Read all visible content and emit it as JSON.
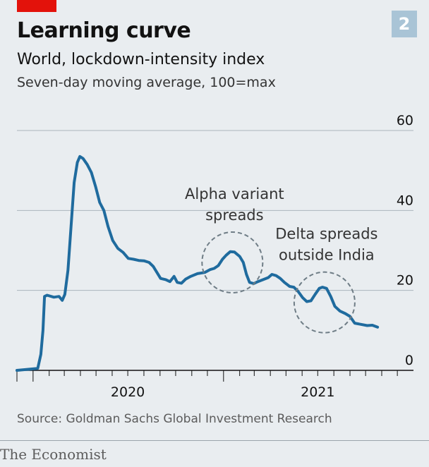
{
  "badge": "2",
  "title": "Learning curve",
  "subtitle": "World, lockdown-intensity index",
  "subtitle2": "Seven-day moving average, 100=max",
  "source": "Source: Goldman Sachs Global Investment Research",
  "brand": "The Economist",
  "colors": {
    "line": "#1f6b9e",
    "grid": "#aab5bd",
    "accent": "#e3120b",
    "badge": "#a9c4d6",
    "annotation_circle": "#6f7d86"
  },
  "chart_data": {
    "type": "line",
    "title": "Learning curve",
    "subtitle": "World, lockdown-intensity index",
    "ylabel": "Seven-day moving average, 100=max",
    "ylim": [
      0,
      60
    ],
    "yticks": [
      0,
      20,
      40,
      60
    ],
    "xlim": [
      "2019-12-01",
      "2022-01-01"
    ],
    "xticks": [
      "2020",
      "2021"
    ],
    "grid": true,
    "series": [
      {
        "values": [
          [
            "2019-12-01",
            0
          ],
          [
            "2020-01-10",
            0.5
          ],
          [
            "2020-01-16",
            4
          ],
          [
            "2020-01-20",
            10
          ],
          [
            "2020-01-23",
            18.5
          ],
          [
            "2020-01-28",
            18.8
          ],
          [
            "2020-02-10",
            18.3
          ],
          [
            "2020-02-20",
            18.5
          ],
          [
            "2020-02-26",
            17.5
          ],
          [
            "2020-03-02",
            19
          ],
          [
            "2020-03-08",
            25
          ],
          [
            "2020-03-14",
            36
          ],
          [
            "2020-03-20",
            47
          ],
          [
            "2020-03-26",
            52
          ],
          [
            "2020-03-31",
            53.5
          ],
          [
            "2020-04-06",
            53
          ],
          [
            "2020-04-14",
            51.5
          ],
          [
            "2020-04-22",
            49.5
          ],
          [
            "2020-04-30",
            46
          ],
          [
            "2020-05-08",
            42
          ],
          [
            "2020-05-16",
            40
          ],
          [
            "2020-05-24",
            36
          ],
          [
            "2020-06-02",
            32.5
          ],
          [
            "2020-06-12",
            30.5
          ],
          [
            "2020-06-22",
            29.5
          ],
          [
            "2020-07-02",
            28
          ],
          [
            "2020-07-12",
            27.8
          ],
          [
            "2020-07-22",
            27.5
          ],
          [
            "2020-08-01",
            27.4
          ],
          [
            "2020-08-11",
            27
          ],
          [
            "2020-08-19",
            26
          ],
          [
            "2020-08-26",
            24.5
          ],
          [
            "2020-09-02",
            23
          ],
          [
            "2020-09-12",
            22.7
          ],
          [
            "2020-09-20",
            22.2
          ],
          [
            "2020-09-28",
            23.5
          ],
          [
            "2020-10-04",
            22
          ],
          [
            "2020-10-12",
            21.8
          ],
          [
            "2020-10-20",
            22.8
          ],
          [
            "2020-10-30",
            23.5
          ],
          [
            "2020-11-12",
            24.2
          ],
          [
            "2020-11-26",
            24.5
          ],
          [
            "2020-12-06",
            25.2
          ],
          [
            "2020-12-14",
            25.5
          ],
          [
            "2020-12-22",
            26.2
          ],
          [
            "2020-12-30",
            27.8
          ],
          [
            "2021-01-06",
            28.8
          ],
          [
            "2021-01-14",
            29.7
          ],
          [
            "2021-01-22",
            29.6
          ],
          [
            "2021-02-01",
            28.5
          ],
          [
            "2021-02-08",
            27
          ],
          [
            "2021-02-14",
            24
          ],
          [
            "2021-02-20",
            22
          ],
          [
            "2021-02-28",
            21.7
          ],
          [
            "2021-03-08",
            22.2
          ],
          [
            "2021-03-18",
            22.7
          ],
          [
            "2021-03-28",
            23.2
          ],
          [
            "2021-04-04",
            24
          ],
          [
            "2021-04-12",
            23.7
          ],
          [
            "2021-04-20",
            23
          ],
          [
            "2021-04-28",
            22
          ],
          [
            "2021-05-08",
            21
          ],
          [
            "2021-05-16",
            20.8
          ],
          [
            "2021-05-24",
            19.8
          ],
          [
            "2021-06-02",
            18.2
          ],
          [
            "2021-06-10",
            17.2
          ],
          [
            "2021-06-18",
            17.4
          ],
          [
            "2021-06-26",
            19
          ],
          [
            "2021-07-04",
            20.5
          ],
          [
            "2021-07-10",
            20.8
          ],
          [
            "2021-07-18",
            20.5
          ],
          [
            "2021-07-26",
            18.5
          ],
          [
            "2021-08-03",
            16
          ],
          [
            "2021-08-13",
            14.8
          ],
          [
            "2021-08-23",
            14.2
          ],
          [
            "2021-09-01",
            13.5
          ],
          [
            "2021-09-10",
            11.8
          ],
          [
            "2021-09-22",
            11.5
          ],
          [
            "2021-10-04",
            11.2
          ],
          [
            "2021-10-14",
            11.3
          ],
          [
            "2021-10-24",
            10.8
          ]
        ]
      }
    ],
    "annotations": [
      {
        "text": [
          "Alpha variant",
          "spreads"
        ],
        "date": "2021-01-18",
        "value": 27
      },
      {
        "text": [
          "Delta spreads",
          "outside India"
        ],
        "date": "2021-07-14",
        "value": 17
      }
    ]
  }
}
